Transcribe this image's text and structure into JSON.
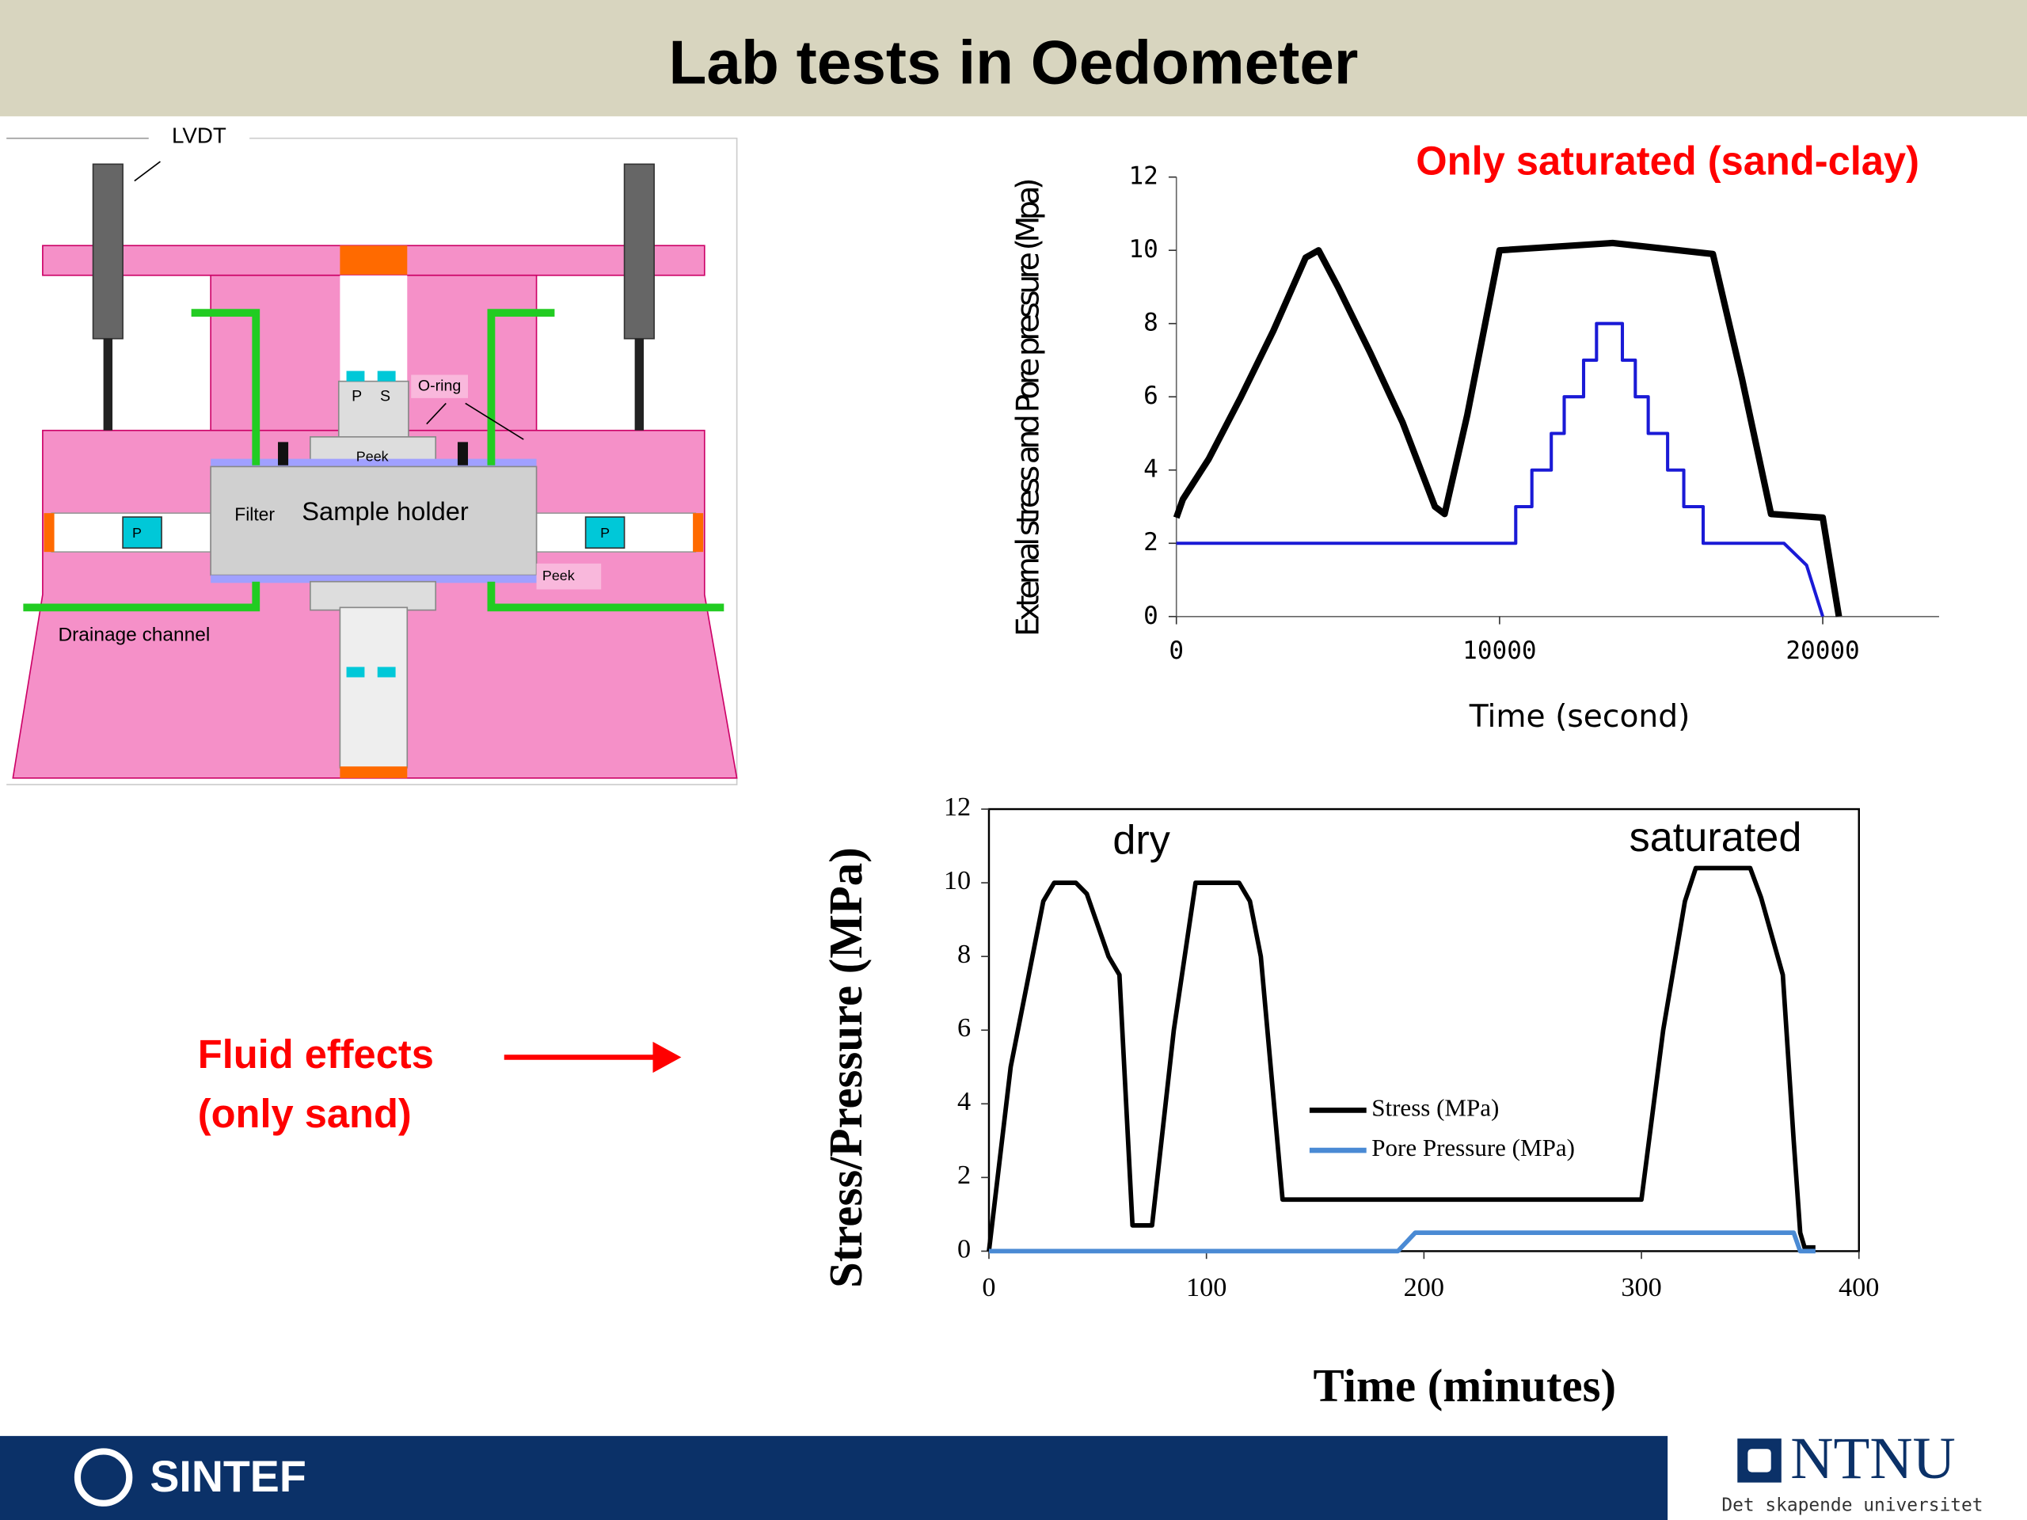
{
  "header": {
    "title": "Lab tests in Oedometer"
  },
  "diagram": {
    "labels": [
      "LVDT",
      "O-ring",
      "P",
      "S",
      "Peek",
      "Filter",
      "Sample holder",
      "Peek",
      "Drainage channel",
      "P",
      "P"
    ]
  },
  "annotation": {
    "lines": [
      "Fluid effects",
      "(only sand)"
    ]
  },
  "chart_data": [
    {
      "type": "line",
      "annotation": "Only saturated (sand-clay)",
      "x_label": "Time (second)",
      "y_label": "External stress and Pore pressure (Mpa)",
      "xlim": [
        0,
        23600
      ],
      "ylim": [
        0,
        12
      ],
      "xticks": [
        0,
        10000,
        20000
      ],
      "yticks": [
        0,
        2,
        4,
        6,
        8,
        10,
        12
      ],
      "series": [
        {
          "color": "#000000",
          "x": [
            0,
            200,
            1000,
            2000,
            3000,
            4000,
            4400,
            5000,
            6000,
            7000,
            8000,
            8300,
            9000,
            10000,
            13500,
            16600,
            17500,
            18400,
            20000,
            20500
          ],
          "values": [
            2.7,
            3.2,
            4.3,
            6,
            7.8,
            9.8,
            10,
            9,
            7.2,
            5.3,
            3,
            2.8,
            5.5,
            10,
            10.2,
            9.9,
            6.5,
            2.8,
            2.7,
            0
          ]
        },
        {
          "color": "#1a1ad6",
          "x": [
            0,
            10500,
            10500,
            11000,
            11000,
            11600,
            11600,
            12000,
            12000,
            12600,
            12600,
            13000,
            13000,
            13400,
            13400,
            13800,
            13800,
            14200,
            14200,
            14600,
            14600,
            15200,
            15200,
            15700,
            15700,
            16300,
            16300,
            18800,
            19500,
            20000
          ],
          "values": [
            2,
            2,
            3,
            3,
            4,
            4,
            5,
            5,
            6,
            6,
            7,
            7,
            8,
            8,
            8,
            8,
            7,
            7,
            6,
            6,
            5,
            5,
            4,
            4,
            3,
            3,
            2,
            2,
            1.4,
            0
          ]
        }
      ]
    },
    {
      "type": "line",
      "x_label": "Time (minutes)",
      "y_label": "Stress/Pressure (MPa)",
      "annotations": [
        "dry",
        "saturated"
      ],
      "xlim": [
        0,
        400
      ],
      "ylim": [
        0,
        12
      ],
      "xticks": [
        0,
        100,
        200,
        300,
        400
      ],
      "yticks": [
        0,
        2,
        4,
        6,
        8,
        10,
        12
      ],
      "legend": "center",
      "series": [
        {
          "name": "Stress (MPa)",
          "color": "#000000",
          "x": [
            0,
            10,
            25,
            30,
            40,
            45,
            55,
            60,
            66,
            75,
            85,
            95,
            115,
            120,
            125,
            135,
            300,
            310,
            320,
            325,
            350,
            355,
            365,
            370,
            373,
            375,
            380
          ],
          "values": [
            0,
            5,
            9.5,
            10,
            10,
            9.7,
            8,
            7.5,
            0.7,
            0.7,
            6,
            10,
            10,
            9.5,
            8,
            1.4,
            1.4,
            6,
            9.5,
            10.4,
            10.4,
            9.6,
            7.5,
            3,
            0.5,
            0.1,
            0.1
          ]
        },
        {
          "name": "Pore Pressure (MPa)",
          "color": "#4a8ad4",
          "x": [
            0,
            188,
            196,
            370,
            373,
            380
          ],
          "values": [
            0,
            0,
            0.5,
            0.5,
            0,
            0
          ]
        }
      ]
    }
  ],
  "footer": {
    "left": "SINTEF",
    "right": "NTNU",
    "tagline": "Det skapende universitet"
  }
}
